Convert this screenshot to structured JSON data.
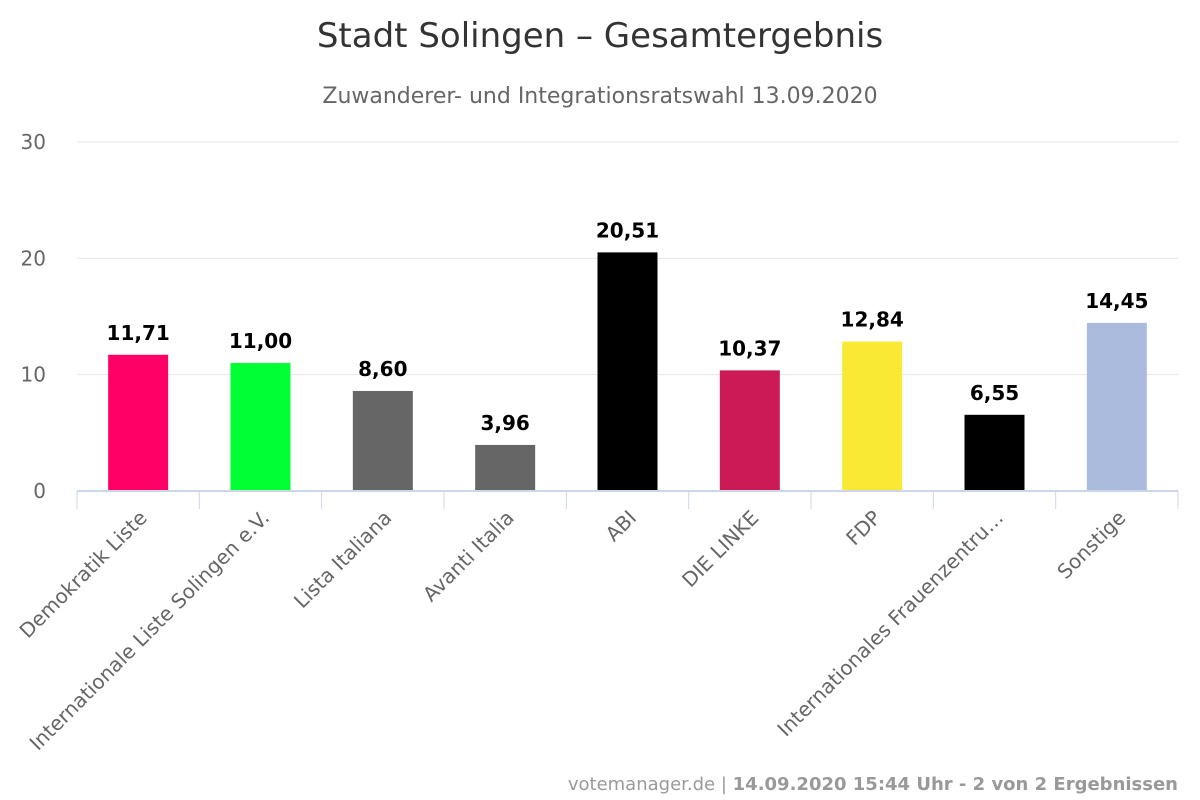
{
  "chart_data": {
    "type": "bar",
    "title": "Stadt Solingen – Gesamtergebnis",
    "subtitle": "Zuwanderer- und Integrationsratswahl 13.09.2020",
    "xlabel": "",
    "ylabel": "",
    "ylim": [
      0,
      30
    ],
    "yticks": [
      "0",
      "10",
      "20",
      "30"
    ],
    "grid": true,
    "categories": [
      "Demokratik Liste",
      "Internationale Liste Solingen e.V.",
      "Lista Italiana",
      "Avanti Italia",
      "ABI",
      "DIE LINKE",
      "FDP",
      "Internationales Frauenzentru…",
      "Sonstige"
    ],
    "values": [
      11.71,
      11.0,
      8.6,
      3.96,
      20.51,
      10.37,
      12.84,
      6.55,
      14.45
    ],
    "data_labels": [
      "11,71",
      "11,00",
      "8,60",
      "3,96",
      "20,51",
      "10,37",
      "12,84",
      "6,55",
      "14,45"
    ],
    "colors": [
      "#ff0066",
      "#00ff33",
      "#666666",
      "#666666",
      "#000000",
      "#cc1a57",
      "#f9e934",
      "#000000",
      "#aabbdd"
    ]
  },
  "credits": {
    "source": "votemanager.de",
    "separator": " | ",
    "info": "14.09.2020 15:44 Uhr - 2 von 2 Ergebnissen"
  }
}
